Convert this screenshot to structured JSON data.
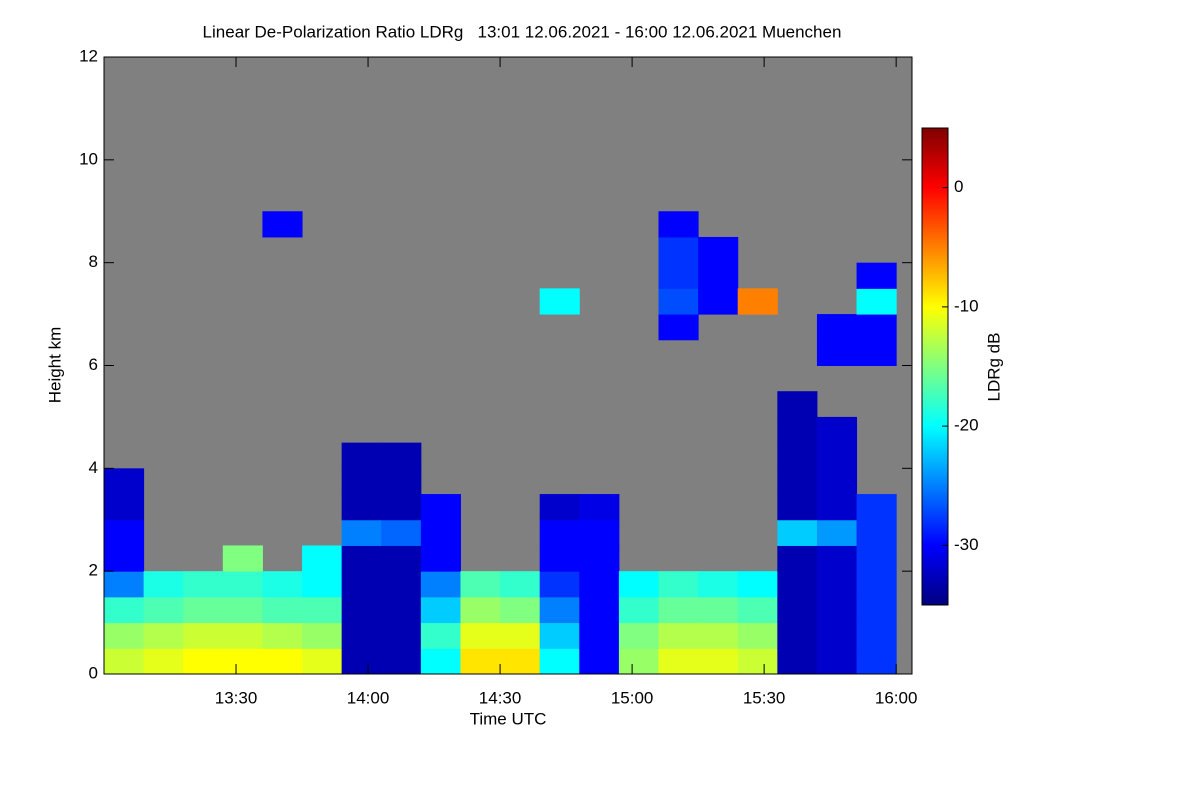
{
  "chart_data": {
    "type": "heatmap",
    "title": "Linear De-Polarization Ratio LDRg   13:01 12.06.2021 - 16:00 12.06.2021 Muenchen",
    "x_label": "Time UTC",
    "y_label": "Height km",
    "colorbar_label": "LDRg dB",
    "xlim": [
      13.0,
      16.06
    ],
    "ylim": [
      0,
      12
    ],
    "xticks": [
      {
        "value": 13.5,
        "label": "13:30"
      },
      {
        "value": 14,
        "label": "14:00"
      },
      {
        "value": 14.5,
        "label": "14:30"
      },
      {
        "value": 15,
        "label": "15:00"
      },
      {
        "value": 15.5,
        "label": "15:30"
      },
      {
        "value": 16,
        "label": "16:00"
      }
    ],
    "yticks": [
      0,
      2,
      4,
      6,
      8,
      10,
      12
    ],
    "zlim": [
      -35,
      5
    ],
    "zticks": [
      -30,
      -20,
      -10,
      0
    ],
    "colormap": "jet",
    "no_data_color": "#808080",
    "xbins": [
      13.0,
      13.15,
      13.3,
      13.45,
      13.6,
      13.75,
      13.9,
      14.05,
      14.2,
      14.35,
      14.5,
      14.65,
      14.8,
      14.95,
      15.1,
      15.25,
      15.4,
      15.55,
      15.7,
      15.85,
      16.0
    ],
    "ybins": [
      0,
      0.5,
      1,
      1.5,
      2,
      2.5,
      3,
      3.5,
      4,
      4.5,
      5,
      5.5,
      6,
      6.5,
      7,
      7.5,
      8,
      8.5,
      9
    ],
    "values": [
      [
        -12,
        -14,
        -18,
        -25,
        -30,
        -30,
        -32,
        -32,
        null,
        null,
        null,
        null,
        null,
        null,
        null,
        null,
        null,
        null
      ],
      [
        -11,
        -13,
        -17,
        -19,
        null,
        null,
        null,
        null,
        null,
        null,
        null,
        null,
        null,
        null,
        null,
        null,
        null,
        null
      ],
      [
        -10,
        -12,
        -16,
        -18,
        null,
        null,
        null,
        null,
        null,
        null,
        null,
        null,
        null,
        null,
        null,
        null,
        null,
        null
      ],
      [
        -10,
        -12,
        -16,
        -18,
        -15,
        null,
        null,
        null,
        null,
        null,
        null,
        null,
        null,
        null,
        null,
        null,
        null,
        null
      ],
      [
        -10,
        -13,
        -17,
        -19,
        null,
        null,
        null,
        null,
        null,
        null,
        null,
        null,
        null,
        null,
        null,
        null,
        null,
        -30
      ],
      [
        -11,
        -14,
        -17,
        -20,
        -20,
        null,
        null,
        null,
        null,
        null,
        null,
        null,
        null,
        null,
        null,
        null,
        null,
        null
      ],
      [
        -33,
        -33,
        -33,
        -33,
        -33,
        -25,
        -33,
        -33,
        -33,
        null,
        null,
        null,
        null,
        null,
        null,
        null,
        null,
        null
      ],
      [
        -33,
        -33,
        -33,
        -33,
        -33,
        -26,
        -33,
        -33,
        -33,
        null,
        null,
        null,
        null,
        null,
        null,
        null,
        null,
        null
      ],
      [
        -20,
        -18,
        -22,
        -25,
        -30,
        -30,
        -30,
        null,
        null,
        null,
        null,
        null,
        null,
        null,
        null,
        null,
        null,
        null
      ],
      [
        -9,
        -11,
        -14,
        -17,
        null,
        null,
        null,
        null,
        null,
        null,
        null,
        null,
        null,
        null,
        null,
        null,
        null,
        null
      ],
      [
        -9,
        -11,
        -15,
        -18,
        null,
        null,
        null,
        null,
        null,
        null,
        null,
        null,
        null,
        null,
        null,
        null,
        null,
        null
      ],
      [
        -20,
        -22,
        -25,
        -28,
        -30,
        -30,
        -32,
        null,
        null,
        null,
        null,
        null,
        null,
        null,
        -20,
        null,
        null,
        null
      ],
      [
        -30,
        -30,
        -30,
        -30,
        -30,
        -30,
        -31,
        null,
        null,
        null,
        null,
        null,
        null,
        null,
        null,
        null,
        null,
        null
      ],
      [
        -14,
        -15,
        -18,
        -20,
        null,
        null,
        null,
        null,
        null,
        null,
        null,
        null,
        null,
        null,
        null,
        null,
        null,
        null
      ],
      [
        -11,
        -13,
        -16,
        -18,
        null,
        null,
        null,
        null,
        null,
        null,
        null,
        null,
        null,
        -30,
        -27,
        -28,
        -28,
        -30
      ],
      [
        -11,
        -13,
        -16,
        -19,
        null,
        null,
        null,
        null,
        null,
        null,
        null,
        null,
        null,
        null,
        -30,
        -30,
        -30,
        null
      ],
      [
        -12,
        -14,
        -17,
        -20,
        null,
        null,
        null,
        null,
        null,
        null,
        null,
        null,
        null,
        null,
        -5,
        null,
        null,
        null
      ],
      [
        -33,
        -33,
        -33,
        -33,
        -33,
        -22,
        -33,
        -33,
        -33,
        -33,
        -33,
        null,
        null,
        null,
        null,
        null,
        null,
        null
      ],
      [
        -32,
        -32,
        -32,
        -32,
        -32,
        -24,
        -32,
        -32,
        -32,
        -32,
        null,
        null,
        -30,
        -30,
        null,
        null,
        null,
        null
      ],
      [
        -28,
        -28,
        -28,
        -28,
        -28,
        -28,
        -28,
        null,
        null,
        null,
        null,
        null,
        -30,
        -30,
        -20,
        -30,
        null,
        null
      ]
    ]
  }
}
